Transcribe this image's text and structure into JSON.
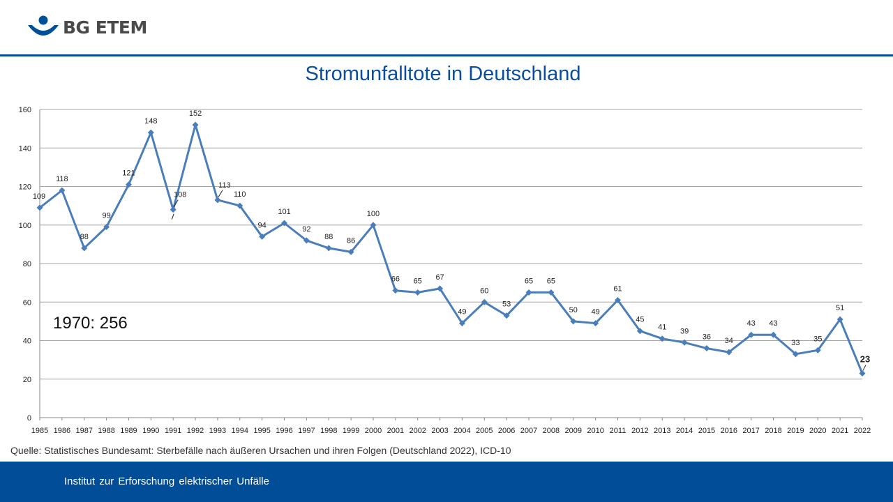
{
  "brand": {
    "name": "BG ETEM",
    "accent_color": "#004f99",
    "logo_icon": "bg-etem-logo-icon"
  },
  "footer": {
    "text": "Institut  zur  Erforschung  elektrischer  Unfälle",
    "background": "#014d98"
  },
  "source_note": "Quelle: Statistisches Bundesamt: Sterbefälle nach äußeren Ursachen und ihren Folgen (Deutschland 2022), ICD-10",
  "chart_data": {
    "type": "line",
    "title": "Stromunfalltote in Deutschland",
    "annotation": "1970: 256",
    "x": [
      1985,
      1986,
      1987,
      1988,
      1989,
      1990,
      1991,
      1992,
      1993,
      1994,
      1995,
      1996,
      1997,
      1998,
      1999,
      2000,
      2001,
      2002,
      2003,
      2004,
      2005,
      2006,
      2007,
      2008,
      2009,
      2010,
      2011,
      2012,
      2013,
      2014,
      2015,
      2016,
      2017,
      2018,
      2019,
      2020,
      2021,
      2022
    ],
    "series": [
      {
        "values": [
          109,
          118,
          88,
          99,
          121,
          148,
          108,
          152,
          113,
          110,
          94,
          101,
          92,
          88,
          86,
          100,
          66,
          65,
          67,
          49,
          60,
          53,
          65,
          65,
          50,
          49,
          61,
          45,
          41,
          39,
          36,
          34,
          43,
          43,
          33,
          35,
          51,
          23
        ],
        "color": "#4a7ebb"
      }
    ],
    "ylim": [
      0,
      160
    ],
    "yticks": [
      0,
      20,
      40,
      60,
      80,
      100,
      120,
      140,
      160
    ],
    "grid": true,
    "legend": "none",
    "last_value_bold": true
  }
}
